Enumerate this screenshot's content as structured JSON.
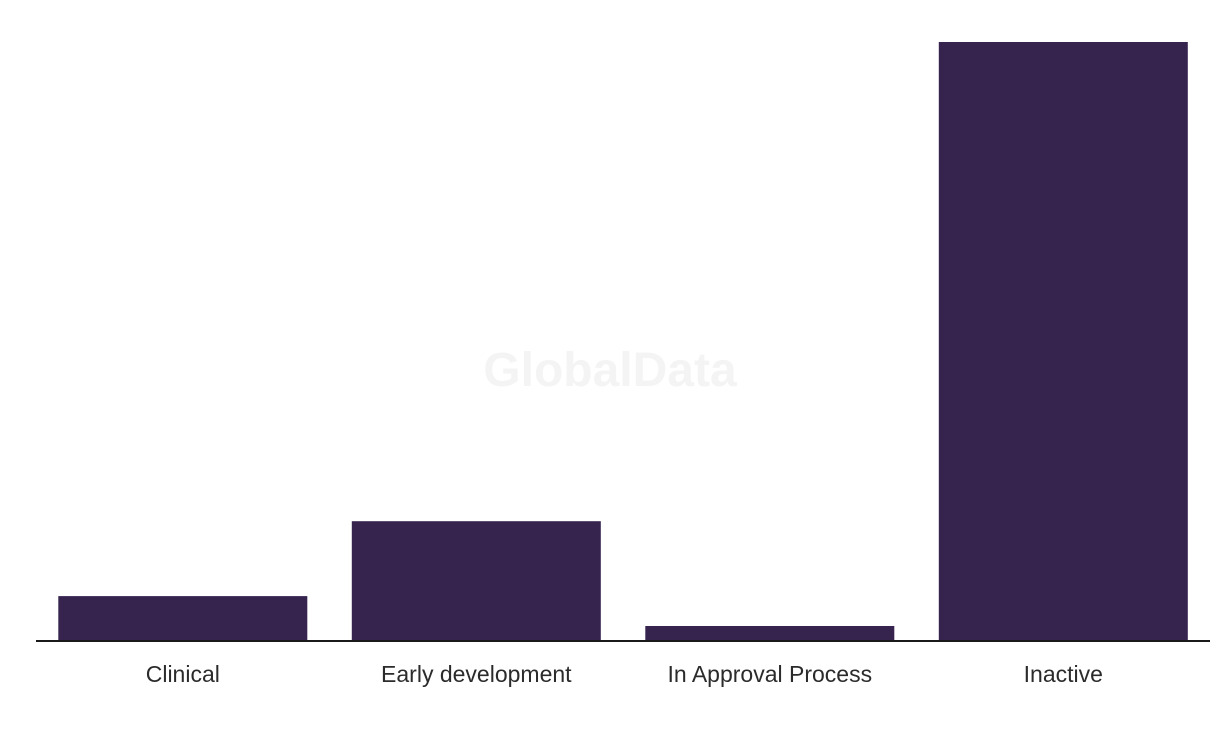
{
  "watermark": "GlobalData",
  "chart_data": {
    "type": "bar",
    "categories": [
      "Clinical",
      "Early development",
      "In Approval Process",
      "Inactive"
    ],
    "values": [
      3,
      8,
      1,
      40
    ],
    "ylim": [
      0,
      40
    ],
    "title": "",
    "xlabel": "",
    "ylabel": "",
    "grid": false,
    "legend": "none",
    "bar_color": "#36244f",
    "axis_color": "#1a1a1a"
  }
}
